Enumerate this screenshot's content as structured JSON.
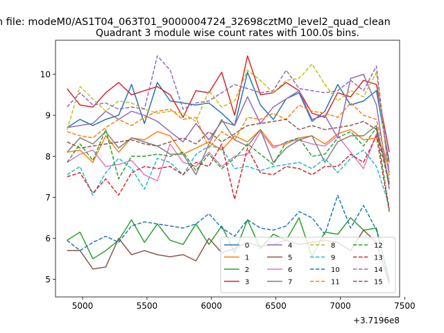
{
  "chart_data": {
    "type": "line",
    "suptitle": "n file: modeM0/AS1T04_063T01_9000004724_32698cztM0_level2_quad_clean",
    "title": "Quadrant 3 module wise count rates with 100.0s bins.",
    "xlabel": "",
    "ylabel": "",
    "x_offset_label": "+3.7196e8",
    "xlim": [
      4790,
      7460
    ],
    "ylim": [
      4.57,
      10.83
    ],
    "x_ticks": [
      5000,
      5500,
      6000,
      6500,
      7000,
      7500
    ],
    "x_tick_labels": [
      "5000",
      "5500",
      "6000",
      "6500",
      "7000",
      "7500"
    ],
    "y_ticks": [
      5,
      6,
      7,
      8,
      9,
      10
    ],
    "y_tick_labels": [
      "5",
      "6",
      "7",
      "8",
      "9",
      "10"
    ],
    "legend_loc": "lower right",
    "x": [
      4880,
      4980,
      5080,
      5180,
      5280,
      5380,
      5480,
      5580,
      5680,
      5780,
      5880,
      5980,
      6080,
      6180,
      6280,
      6380,
      6480,
      6580,
      6680,
      6780,
      6880,
      6980,
      7080,
      7180,
      7280,
      7380
    ],
    "series": [
      {
        "name": "0",
        "color": "#1f77b4",
        "style": "solid",
        "values": [
          8.7,
          8.9,
          8.75,
          8.9,
          9.0,
          9.75,
          8.8,
          9.8,
          9.35,
          9.3,
          9.25,
          9.3,
          9.05,
          8.75,
          10.05,
          9.25,
          8.9,
          9.4,
          9.55,
          8.85,
          9.1,
          9.75,
          9.25,
          9.35,
          9.6,
          7.85
        ]
      },
      {
        "name": "1",
        "color": "#ff7f0e",
        "style": "solid",
        "values": [
          8.1,
          8.15,
          7.85,
          8.5,
          8.1,
          8.45,
          8.4,
          8.6,
          8.5,
          8.05,
          8.2,
          8.35,
          8.15,
          8.5,
          8.35,
          8.65,
          8.25,
          8.3,
          8.45,
          8.5,
          8.3,
          8.55,
          8.65,
          8.4,
          8.45,
          7.85
        ]
      },
      {
        "name": "2",
        "color": "#2ca02c",
        "style": "solid",
        "values": [
          5.95,
          6.15,
          5.5,
          5.7,
          5.95,
          6.45,
          5.9,
          6.35,
          5.95,
          5.85,
          6.35,
          5.85,
          6.3,
          5.65,
          6.45,
          5.75,
          6.1,
          5.95,
          6.5,
          5.55,
          6.15,
          6.1,
          6.5,
          6.2,
          6.25,
          4.95
        ]
      },
      {
        "name": "3",
        "color": "#d62728",
        "style": "solid",
        "values": [
          9.65,
          9.25,
          9.2,
          9.55,
          9.8,
          9.5,
          9.6,
          9.7,
          9.5,
          8.95,
          9.6,
          9.55,
          10.05,
          9.0,
          10.45,
          9.5,
          9.55,
          9.8,
          9.6,
          9.05,
          8.95,
          9.55,
          9.45,
          9.85,
          9.75,
          8.1
        ]
      },
      {
        "name": "4",
        "color": "#9467bd",
        "style": "solid",
        "values": [
          8.7,
          8.75,
          8.8,
          9.1,
          8.9,
          9.1,
          9.0,
          8.85,
          8.6,
          8.35,
          8.8,
          8.4,
          8.85,
          8.75,
          9.45,
          8.8,
          9.2,
          9.4,
          9.6,
          8.9,
          9.0,
          8.45,
          9.9,
          10.0,
          9.25,
          7.2
        ]
      },
      {
        "name": "5",
        "color": "#8c564b",
        "style": "solid",
        "values": [
          5.7,
          5.7,
          5.25,
          5.3,
          6.0,
          5.6,
          5.7,
          5.6,
          5.55,
          5.6,
          5.45,
          6.0,
          5.65,
          5.75,
          5.9,
          5.8,
          5.85,
          5.95,
          5.85,
          5.9,
          5.95,
          5.9,
          5.7,
          6.2,
          5.9,
          4.9
        ]
      },
      {
        "name": "6",
        "color": "#e377c2",
        "style": "solid",
        "values": [
          7.85,
          8.05,
          8.15,
          7.75,
          7.8,
          7.9,
          7.55,
          7.4,
          8.3,
          7.85,
          7.75,
          8.1,
          7.75,
          8.0,
          8.05,
          8.6,
          8.2,
          8.35,
          8.4,
          8.3,
          8.25,
          8.5,
          8.1,
          7.7,
          8.55,
          7.7
        ]
      },
      {
        "name": "7",
        "color": "#7f7f7f",
        "style": "solid",
        "values": [
          8.1,
          8.45,
          8.3,
          8.6,
          8.2,
          8.45,
          8.35,
          8.25,
          8.05,
          8.05,
          7.55,
          8.3,
          8.9,
          8.4,
          8.25,
          8.65,
          7.85,
          8.2,
          8.4,
          8.5,
          7.85,
          8.35,
          8.5,
          8.5,
          8.75,
          7.35
        ]
      },
      {
        "name": "8",
        "color": "#bcbd22",
        "style": "dashed",
        "values": [
          8.65,
          9.7,
          9.4,
          9.1,
          9.35,
          9.3,
          9.15,
          9.05,
          9.1,
          9.05,
          8.85,
          9.6,
          9.2,
          9.35,
          10.1,
          9.85,
          9.55,
          9.85,
          9.9,
          10.25,
          9.75,
          9.35,
          9.6,
          9.45,
          10.05,
          7.45
        ]
      },
      {
        "name": "9",
        "color": "#17becf",
        "style": "dashed",
        "values": [
          7.55,
          7.75,
          7.05,
          7.6,
          7.95,
          7.7,
          7.2,
          7.95,
          7.85,
          7.55,
          8.05,
          8.25,
          8.2,
          7.7,
          7.75,
          7.65,
          7.75,
          7.8,
          7.85,
          7.7,
          7.95,
          7.6,
          7.95,
          8.15,
          7.75,
          6.8
        ]
      },
      {
        "name": "10",
        "color": "#1f77b4",
        "style": "dashed",
        "values": [
          5.95,
          5.7,
          5.9,
          6.05,
          5.9,
          6.3,
          6.4,
          6.35,
          6.3,
          6.25,
          6.35,
          6.6,
          6.25,
          6.05,
          6.45,
          6.25,
          6.2,
          6.3,
          6.65,
          6.5,
          6.1,
          7.05,
          6.25,
          6.8,
          6.2,
          5.0
        ]
      },
      {
        "name": "11",
        "color": "#ff7f0e",
        "style": "dashed",
        "values": [
          8.6,
          8.5,
          8.45,
          8.7,
          8.9,
          8.75,
          8.95,
          9.1,
          9.15,
          8.9,
          8.95,
          8.2,
          8.6,
          8.4,
          8.95,
          8.9,
          9.05,
          8.9,
          9.25,
          9.1,
          9.05,
          8.95,
          9.3,
          9.0,
          8.9,
          7.6
        ]
      },
      {
        "name": "12",
        "color": "#2ca02c",
        "style": "dashed",
        "values": [
          7.85,
          8.3,
          7.9,
          8.65,
          7.45,
          8.0,
          8.0,
          8.05,
          8.0,
          8.1,
          7.65,
          8.05,
          7.7,
          7.95,
          8.3,
          8.05,
          7.8,
          8.35,
          8.45,
          8.0,
          8.05,
          8.45,
          8.6,
          8.25,
          8.7,
          6.7
        ]
      },
      {
        "name": "13",
        "color": "#d62728",
        "style": "dashed",
        "values": [
          7.5,
          7.6,
          7.1,
          7.45,
          7.05,
          7.6,
          7.75,
          7.7,
          7.75,
          7.55,
          7.85,
          7.75,
          8.3,
          6.95,
          8.2,
          7.6,
          7.55,
          7.75,
          7.7,
          7.55,
          7.75,
          7.75,
          8.05,
          7.85,
          8.5,
          6.65
        ]
      },
      {
        "name": "14",
        "color": "#9467bd",
        "style": "dashed",
        "values": [
          9.2,
          9.55,
          9.25,
          9.3,
          9.15,
          9.2,
          9.15,
          10.45,
          10.1,
          9.15,
          9.3,
          9.35,
          9.55,
          9.75,
          9.65,
          9.55,
          9.6,
          10.1,
          9.65,
          9.6,
          9.55,
          9.6,
          9.85,
          9.6,
          10.2,
          7.55
        ]
      },
      {
        "name": "15",
        "color": "#8c564b",
        "style": "dashed",
        "values": [
          8.35,
          8.2,
          8.25,
          8.3,
          8.35,
          8.4,
          8.3,
          8.25,
          8.35,
          8.45,
          8.3,
          8.6,
          8.35,
          8.55,
          8.75,
          8.8,
          8.85,
          8.9,
          8.65,
          8.75,
          8.65,
          8.7,
          8.75,
          8.85,
          8.65,
          7.3
        ]
      }
    ]
  }
}
